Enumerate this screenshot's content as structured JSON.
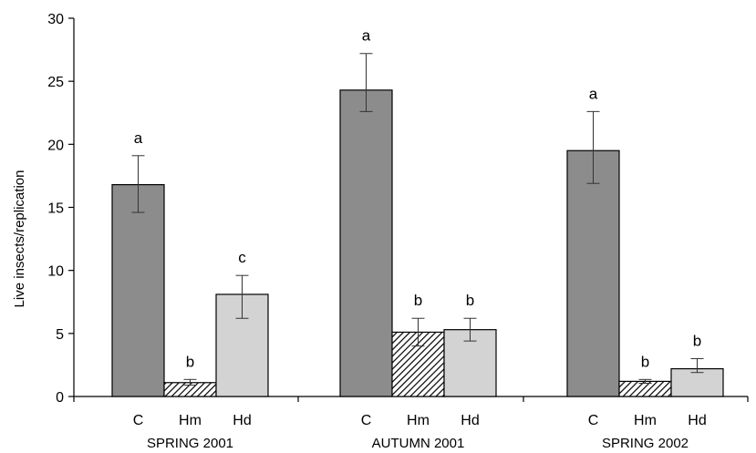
{
  "chart_data": {
    "type": "bar",
    "title": "",
    "ylabel": "Live insects/replication",
    "xlabel": "",
    "ylim": [
      0,
      30
    ],
    "yticks": [
      0,
      5,
      10,
      15,
      20,
      25,
      30
    ],
    "grid": false,
    "groups": [
      {
        "label": "SPRING 2001",
        "bars": [
          {
            "label": "C",
            "value": 16.8,
            "err_low": 14.6,
            "err_high": 19.1,
            "sig": "a",
            "fill": "gray-dark"
          },
          {
            "label": "Hm",
            "value": 1.1,
            "err_low": 0.9,
            "err_high": 1.35,
            "sig": "b",
            "fill": "hatch"
          },
          {
            "label": "Hd",
            "value": 8.1,
            "err_low": 6.2,
            "err_high": 9.6,
            "sig": "c",
            "fill": "gray-light"
          }
        ]
      },
      {
        "label": "AUTUMN 2001",
        "bars": [
          {
            "label": "C",
            "value": 24.3,
            "err_low": 22.6,
            "err_high": 27.2,
            "sig": "a",
            "fill": "gray-dark"
          },
          {
            "label": "Hm",
            "value": 5.1,
            "err_low": 4.0,
            "err_high": 6.2,
            "sig": "b",
            "fill": "hatch"
          },
          {
            "label": "Hd",
            "value": 5.3,
            "err_low": 4.4,
            "err_high": 6.2,
            "sig": "b",
            "fill": "gray-light"
          }
        ]
      },
      {
        "label": "SPRING 2002",
        "bars": [
          {
            "label": "C",
            "value": 19.5,
            "err_low": 16.9,
            "err_high": 22.6,
            "sig": "a",
            "fill": "gray-dark"
          },
          {
            "label": "Hm",
            "value": 1.2,
            "err_low": 1.05,
            "err_high": 1.35,
            "sig": "b",
            "fill": "hatch"
          },
          {
            "label": "Hd",
            "value": 2.2,
            "err_low": 1.9,
            "err_high": 3.0,
            "sig": "b",
            "fill": "gray-light"
          }
        ]
      }
    ],
    "colors": {
      "gray-dark": "#8c8c8c",
      "gray-light": "#d3d3d3",
      "hatch_stroke": "#000000",
      "bar_outline": "#000000"
    }
  }
}
